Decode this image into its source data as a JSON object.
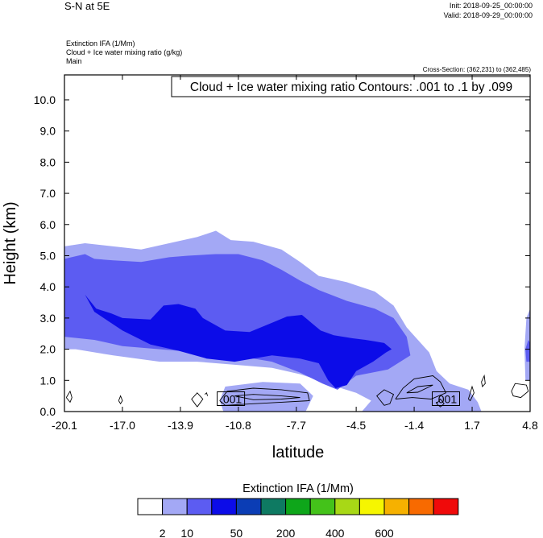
{
  "header": {
    "title": "S-N at 5E",
    "init": "Init: 2018-09-25_00:00:00",
    "valid": "Valid: 2018-09-29_00:00:00",
    "fields": [
      "Extinction IFA   (1/Mm)",
      "Cloud + Ice water mixing ratio   (g/kg)",
      "Main"
    ],
    "cross_section": "Cross-Section: (362,231) to (362,485)"
  },
  "chart_data": {
    "type": "area",
    "title": "Cloud + Ice water mixing ratio Contours: .001 to .1 by .099",
    "xlabel": "latitude",
    "ylabel": "Height (km)",
    "xlim": [
      -20.1,
      4.8
    ],
    "ylim": [
      0,
      10.8
    ],
    "x_ticks": [
      "-20.1",
      "-17.0",
      "-13.9",
      "-10.8",
      "-7.7",
      "-4.5",
      "-1.4",
      "1.7",
      "4.8"
    ],
    "x_tick_values": [
      -20.1,
      -17.0,
      -13.9,
      -10.8,
      -7.7,
      -4.5,
      -1.4,
      1.7,
      4.8
    ],
    "y_ticks": [
      "0.0",
      "1.0",
      "2.0",
      "3.0",
      "4.0",
      "5.0",
      "6.0",
      "7.0",
      "8.0",
      "9.0",
      "10.0"
    ],
    "y_tick_values": [
      0,
      1,
      2,
      3,
      4,
      5,
      6,
      7,
      8,
      9,
      10
    ],
    "filled_levels": [
      {
        "level": "2",
        "color": "#a3a8f5",
        "polygons": [
          [
            [
              -20.1,
              2.0
            ],
            [
              -20.1,
              5.3
            ],
            [
              -19.0,
              5.4
            ],
            [
              -17.5,
              5.3
            ],
            [
              -16.0,
              5.2
            ],
            [
              -14.5,
              5.4
            ],
            [
              -13.0,
              5.6
            ],
            [
              -12.0,
              5.8
            ],
            [
              -11.2,
              5.5
            ],
            [
              -10.0,
              5.45
            ],
            [
              -8.5,
              5.2
            ],
            [
              -7.5,
              4.8
            ],
            [
              -6.5,
              4.35
            ],
            [
              -5.0,
              4.15
            ],
            [
              -3.5,
              3.85
            ],
            [
              -2.5,
              3.4
            ],
            [
              -1.8,
              2.7
            ],
            [
              -1.2,
              2.3
            ],
            [
              -0.6,
              1.9
            ],
            [
              -0.2,
              1.3
            ],
            [
              0.5,
              0.9
            ],
            [
              1.5,
              0.7
            ],
            [
              2.0,
              0.3
            ],
            [
              2.2,
              0.0
            ],
            [
              -4.2,
              0.0
            ],
            [
              -3.7,
              0.35
            ],
            [
              -4.5,
              0.6
            ],
            [
              -5.3,
              0.75
            ],
            [
              -6.0,
              0.9
            ],
            [
              -7.5,
              1.2
            ],
            [
              -9.0,
              1.4
            ],
            [
              -11.0,
              1.5
            ],
            [
              -13.0,
              1.6
            ],
            [
              -15.0,
              1.6
            ],
            [
              -17.5,
              1.8
            ],
            [
              -19.5,
              2.0
            ]
          ],
          [
            [
              -11.6,
              0.0
            ],
            [
              -11.8,
              0.35
            ],
            [
              -11.5,
              0.8
            ],
            [
              -9.5,
              0.95
            ],
            [
              -7.5,
              0.9
            ],
            [
              -6.8,
              0.5
            ],
            [
              -7.2,
              0.0
            ]
          ],
          [
            [
              4.55,
              1.0
            ],
            [
              4.5,
              2.0
            ],
            [
              4.6,
              3.0
            ],
            [
              4.8,
              3.3
            ],
            [
              4.8,
              1.0
            ]
          ]
        ]
      },
      {
        "level": "10",
        "color": "#5c5cf2",
        "polygons": [
          [
            [
              -20.1,
              2.4
            ],
            [
              -20.1,
              4.9
            ],
            [
              -19.0,
              5.05
            ],
            [
              -18.5,
              4.9
            ],
            [
              -17.5,
              4.85
            ],
            [
              -16.0,
              4.8
            ],
            [
              -14.5,
              4.95
            ],
            [
              -13.5,
              5.0
            ],
            [
              -12.0,
              5.05
            ],
            [
              -10.8,
              5.05
            ],
            [
              -9.5,
              4.85
            ],
            [
              -8.5,
              4.55
            ],
            [
              -7.5,
              4.2
            ],
            [
              -6.5,
              3.9
            ],
            [
              -5.0,
              3.55
            ],
            [
              -3.5,
              3.3
            ],
            [
              -2.5,
              3.0
            ],
            [
              -1.8,
              2.4
            ],
            [
              -1.6,
              1.8
            ],
            [
              -2.8,
              1.35
            ],
            [
              -4.5,
              1.15
            ],
            [
              -5.5,
              0.7
            ],
            [
              -6.3,
              0.9
            ],
            [
              -7.5,
              1.25
            ],
            [
              -9.0,
              1.6
            ],
            [
              -11.0,
              1.8
            ],
            [
              -13.0,
              1.9
            ],
            [
              -15.0,
              2.0
            ],
            [
              -17.0,
              2.1
            ],
            [
              -18.5,
              2.3
            ]
          ],
          [
            [
              4.6,
              1.6
            ],
            [
              4.55,
              2.0
            ],
            [
              4.7,
              2.3
            ],
            [
              4.8,
              2.2
            ],
            [
              4.8,
              1.6
            ]
          ]
        ]
      },
      {
        "level": "50",
        "color": "#0c0ce8",
        "polygons": [
          [
            [
              -19.0,
              3.75
            ],
            [
              -18.4,
              3.3
            ],
            [
              -17.6,
              3.15
            ],
            [
              -17.0,
              3.0
            ],
            [
              -15.5,
              2.95
            ],
            [
              -14.8,
              3.4
            ],
            [
              -14.0,
              3.45
            ],
            [
              -13.1,
              3.3
            ],
            [
              -12.7,
              3.0
            ],
            [
              -11.5,
              2.6
            ],
            [
              -10.2,
              2.55
            ],
            [
              -9.0,
              2.85
            ],
            [
              -8.2,
              3.05
            ],
            [
              -7.4,
              3.1
            ],
            [
              -6.9,
              2.85
            ],
            [
              -6.4,
              2.6
            ],
            [
              -5.7,
              2.45
            ],
            [
              -4.7,
              2.35
            ],
            [
              -4.0,
              2.3
            ],
            [
              -3.5,
              2.25
            ],
            [
              -3.0,
              2.2
            ],
            [
              -2.6,
              2.0
            ],
            [
              -2.9,
              1.9
            ],
            [
              -3.6,
              1.6
            ],
            [
              -4.5,
              1.3
            ],
            [
              -5.0,
              0.85
            ],
            [
              -5.6,
              0.75
            ],
            [
              -6.0,
              1.0
            ],
            [
              -6.5,
              1.55
            ],
            [
              -7.5,
              1.7
            ],
            [
              -9.0,
              1.8
            ],
            [
              -11.0,
              1.6
            ],
            [
              -12.5,
              1.7
            ],
            [
              -14.0,
              1.95
            ],
            [
              -15.5,
              2.15
            ],
            [
              -17.0,
              2.6
            ],
            [
              -18.5,
              3.2
            ]
          ]
        ]
      }
    ],
    "contour_lines": [
      {
        "value": ".001",
        "label_at": [
          -11.2,
          0.4
        ],
        "lines": [
          [
            [
              -20.0,
              0.45
            ],
            [
              -19.8,
              0.65
            ],
            [
              -19.7,
              0.45
            ],
            [
              -19.8,
              0.3
            ],
            [
              -20.0,
              0.45
            ]
          ],
          [
            [
              -17.2,
              0.35
            ],
            [
              -17.1,
              0.5
            ],
            [
              -17.0,
              0.35
            ],
            [
              -17.1,
              0.25
            ],
            [
              -17.2,
              0.35
            ]
          ],
          [
            [
              -13.0,
              0.15
            ],
            [
              -13.3,
              0.4
            ],
            [
              -13.0,
              0.6
            ],
            [
              -12.7,
              0.4
            ],
            [
              -13.0,
              0.15
            ]
          ],
          [
            [
              -12.6,
              0.55
            ],
            [
              -12.5,
              0.6
            ],
            [
              -12.45,
              0.5
            ]
          ],
          [
            [
              -11.8,
              0.35
            ],
            [
              -11.4,
              0.65
            ],
            [
              -10.0,
              0.75
            ],
            [
              -8.5,
              0.7
            ],
            [
              -7.1,
              0.6
            ],
            [
              -7.0,
              0.35
            ],
            [
              -8.5,
              0.3
            ],
            [
              -10.0,
              0.25
            ],
            [
              -11.5,
              0.2
            ],
            [
              -11.8,
              0.35
            ]
          ],
          [
            [
              -11.0,
              0.5
            ],
            [
              -10.0,
              0.55
            ],
            [
              -8.5,
              0.5
            ],
            [
              -7.5,
              0.45
            ],
            [
              -8.5,
              0.4
            ],
            [
              -10.0,
              0.38
            ],
            [
              -11.0,
              0.5
            ]
          ],
          [
            [
              -3.0,
              0.2
            ],
            [
              -3.4,
              0.5
            ],
            [
              -3.0,
              0.7
            ],
            [
              -2.5,
              0.55
            ],
            [
              -2.7,
              0.25
            ],
            [
              -3.0,
              0.2
            ]
          ],
          [
            [
              -2.4,
              0.4
            ],
            [
              -2.0,
              0.75
            ],
            [
              -1.4,
              1.05
            ],
            [
              -0.4,
              1.15
            ],
            [
              0.0,
              0.95
            ],
            [
              0.3,
              0.6
            ],
            [
              -0.5,
              0.4
            ],
            [
              -1.5,
              0.45
            ],
            [
              -2.4,
              0.4
            ]
          ],
          [
            [
              -1.8,
              0.6
            ],
            [
              -1.2,
              0.8
            ],
            [
              -0.4,
              0.85
            ],
            [
              -1.2,
              0.62
            ],
            [
              -1.8,
              0.6
            ]
          ],
          [
            [
              -0.2,
              0.25
            ],
            [
              0.0,
              0.4
            ],
            [
              0.2,
              0.25
            ],
            [
              0.0,
              0.15
            ],
            [
              -0.2,
              0.25
            ]
          ],
          [
            [
              1.5,
              0.4
            ],
            [
              1.7,
              0.8
            ],
            [
              1.8,
              0.6
            ],
            [
              1.6,
              0.35
            ],
            [
              1.5,
              0.4
            ]
          ],
          [
            [
              2.2,
              0.95
            ],
            [
              2.35,
              1.15
            ],
            [
              2.4,
              0.9
            ],
            [
              2.25,
              0.8
            ],
            [
              2.2,
              0.95
            ]
          ],
          [
            [
              3.8,
              0.65
            ],
            [
              4.0,
              0.9
            ],
            [
              4.6,
              0.85
            ],
            [
              4.7,
              0.65
            ],
            [
              4.3,
              0.45
            ],
            [
              3.9,
              0.5
            ],
            [
              3.8,
              0.65
            ]
          ]
        ]
      },
      {
        "value": ".001",
        "label_at": [
          0.3,
          0.4
        ],
        "lines": []
      }
    ]
  },
  "colorbar": {
    "title": "Extinction IFA  (1/Mm)",
    "colors": [
      "#ffffff",
      "#a3a8f5",
      "#5c5cf2",
      "#0c0ce8",
      "#0b3db5",
      "#0e7a62",
      "#0ea61a",
      "#44c21a",
      "#a8d816",
      "#f6f600",
      "#f6b100",
      "#f86a00",
      "#f00a0a"
    ],
    "labels": [
      {
        "text": "2",
        "after_box": 1
      },
      {
        "text": "10",
        "after_box": 2
      },
      {
        "text": "50",
        "after_box": 4
      },
      {
        "text": "200",
        "after_box": 6
      },
      {
        "text": "400",
        "after_box": 8
      },
      {
        "text": "600",
        "after_box": 10
      }
    ]
  }
}
